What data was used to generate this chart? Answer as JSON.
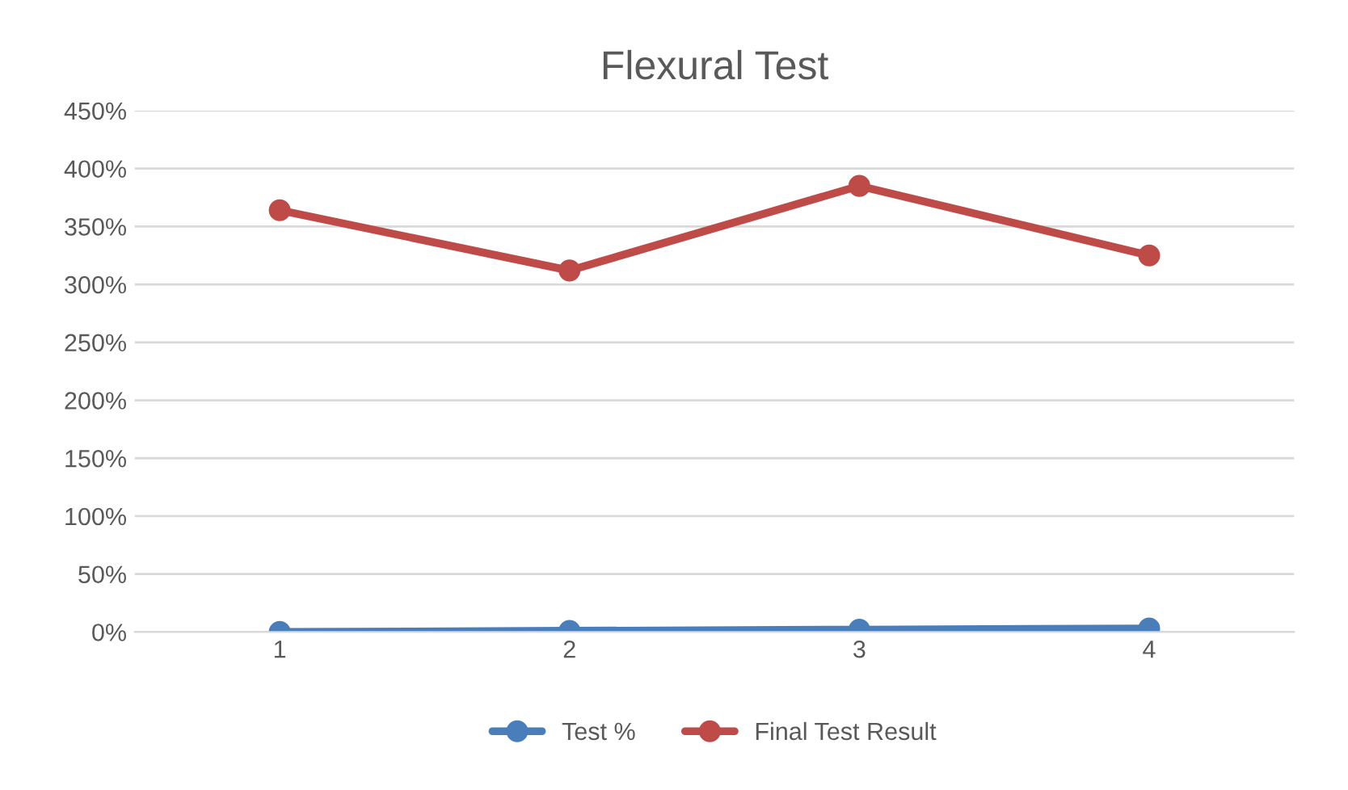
{
  "chart_data": {
    "type": "line",
    "title": "Flexural Test",
    "categories": [
      "1",
      "2",
      "3",
      "4"
    ],
    "series": [
      {
        "name": "Test %",
        "color": "#4a7ebb",
        "values": [
          0,
          1,
          2,
          3
        ]
      },
      {
        "name": "Final Test Result",
        "color": "#be4b48",
        "values": [
          364,
          312,
          385,
          325
        ]
      }
    ],
    "ylim": [
      0,
      450
    ],
    "yticks": [
      {
        "value": 0,
        "label": "0%"
      },
      {
        "value": 50,
        "label": "50%"
      },
      {
        "value": 100,
        "label": "100%"
      },
      {
        "value": 150,
        "label": "150%"
      },
      {
        "value": 200,
        "label": "200%"
      },
      {
        "value": 250,
        "label": "250%"
      },
      {
        "value": 300,
        "label": "300%"
      },
      {
        "value": 350,
        "label": "350%"
      },
      {
        "value": 400,
        "label": "400%"
      },
      {
        "value": 450,
        "label": "450%"
      }
    ],
    "grid": "y",
    "legend": "bottom",
    "marker": "circle",
    "line_style": "solid"
  }
}
